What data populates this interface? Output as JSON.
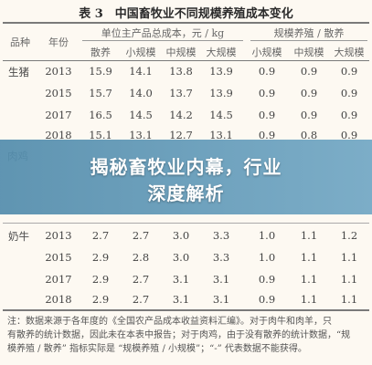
{
  "caption": "表 3　中国畜牧业不同规模养殖成本变化",
  "header": {
    "col_species": "品种",
    "col_year": "年份",
    "group_cost": "单位主产品总成本，元 / kg",
    "group_ratio": "规模养殖 / 散养",
    "sub_cost": [
      "散养",
      "小规模",
      "中规模",
      "大规模"
    ],
    "sub_ratio": [
      "小规模",
      "中规模",
      "大规模"
    ]
  },
  "groups": [
    {
      "species": "生猪",
      "rows": [
        {
          "year": "2013",
          "cells": [
            "15.9",
            "14.1",
            "13.8",
            "13.9",
            "0.9",
            "0.9",
            "0.9"
          ]
        },
        {
          "year": "2015",
          "cells": [
            "15.7",
            "14.0",
            "13.7",
            "13.9",
            "0.9",
            "0.9",
            "0.9"
          ]
        },
        {
          "year": "2017",
          "cells": [
            "16.5",
            "14.5",
            "14.2",
            "14.5",
            "0.9",
            "0.9",
            "0.9"
          ]
        },
        {
          "year": "2018",
          "cells": [
            "15.1",
            "13.1",
            "12.7",
            "13.1",
            "0.9",
            "0.8",
            "0.9"
          ]
        }
      ]
    },
    {
      "species": "肉鸡",
      "rows": []
    },
    {
      "species": "奶牛",
      "rows": [
        {
          "year": "2013",
          "cells": [
            "2.7",
            "2.7",
            "3.0",
            "3.3",
            "1.0",
            "1.1",
            "1.2"
          ]
        },
        {
          "year": "2015",
          "cells": [
            "2.9",
            "2.8",
            "3.0",
            "3.3",
            "1.0",
            "1.1",
            "1.1"
          ]
        },
        {
          "year": "2017",
          "cells": [
            "2.9",
            "2.7",
            "3.1",
            "3.1",
            "0.9",
            "1.1",
            "1.1"
          ]
        },
        {
          "year": "2018",
          "cells": [
            "2.9",
            "2.7",
            "3.1",
            "3.1",
            "0.9",
            "1.1",
            "1.1"
          ]
        }
      ]
    }
  ],
  "banner": {
    "line1": "揭秘畜牧业内幕，行业",
    "line2": "深度解析"
  },
  "notes": [
    "注：数据来源于各年度的《全国农产品成本收益资料汇编》。对于肉牛和肉羊，只",
    "有散养的统计数据，因此未在本表中报告；对于肉鸡，由于没有散养的统计数据，“规",
    "模养殖 / 散养” 指标实际是 “规模养殖 / 小规模”；“-” 代表数据不能获得。"
  ]
}
